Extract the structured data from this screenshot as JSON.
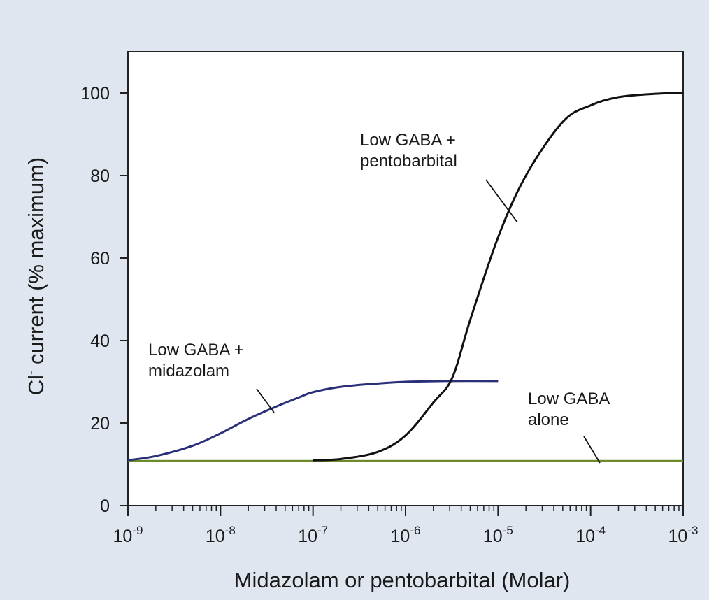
{
  "chart_data": {
    "type": "line",
    "title": "",
    "xlabel": "Midazolam or pentobarbital (Molar)",
    "ylabel": {
      "base": "Cl",
      "superscript": "-",
      "rest": " current (% maximum)"
    },
    "x_scale": "log",
    "xlim": [
      1e-09,
      0.001
    ],
    "ylim": [
      0,
      100
    ],
    "x_ticks": [
      {
        "value": 1e-09,
        "base": "10",
        "exponent": "-9"
      },
      {
        "value": 1e-08,
        "base": "10",
        "exponent": "-8"
      },
      {
        "value": 1e-07,
        "base": "10",
        "exponent": "-7"
      },
      {
        "value": 1e-06,
        "base": "10",
        "exponent": "-6"
      },
      {
        "value": 1e-05,
        "base": "10",
        "exponent": "-5"
      },
      {
        "value": 0.0001,
        "base": "10",
        "exponent": "-4"
      },
      {
        "value": 0.001,
        "base": "10",
        "exponent": "-3"
      }
    ],
    "y_ticks": [
      0,
      20,
      40,
      60,
      80,
      100
    ],
    "grid": false,
    "series": [
      {
        "label_lines": [
          "Low GABA +",
          "pentobarbital"
        ],
        "color": "#111111",
        "x": [
          1e-07,
          2e-07,
          5e-07,
          1e-06,
          2e-06,
          3.2e-06,
          5e-06,
          1e-05,
          2e-05,
          5e-05,
          0.0001,
          0.0002,
          0.0005,
          0.001
        ],
        "y": [
          11,
          11.3,
          13,
          17,
          25,
          31,
          45,
          65,
          80,
          93,
          97,
          99,
          99.8,
          100
        ]
      },
      {
        "label_lines": [
          "Low GABA +",
          "midazolam"
        ],
        "color": "#2a2f78",
        "x": [
          1e-09,
          2e-09,
          5e-09,
          1e-08,
          2e-08,
          4e-08,
          7e-08,
          1e-07,
          2e-07,
          5e-07,
          1e-06,
          3e-06,
          1e-05
        ],
        "y": [
          11,
          12,
          14.5,
          17.5,
          21,
          24,
          26.2,
          27.5,
          28.8,
          29.6,
          30,
          30.2,
          30.2
        ]
      },
      {
        "label_lines": [
          "Low GABA",
          "alone"
        ],
        "color": "#6d8a2e",
        "x": [
          1e-09,
          0.001
        ],
        "y": [
          10.8,
          10.8
        ]
      }
    ]
  }
}
